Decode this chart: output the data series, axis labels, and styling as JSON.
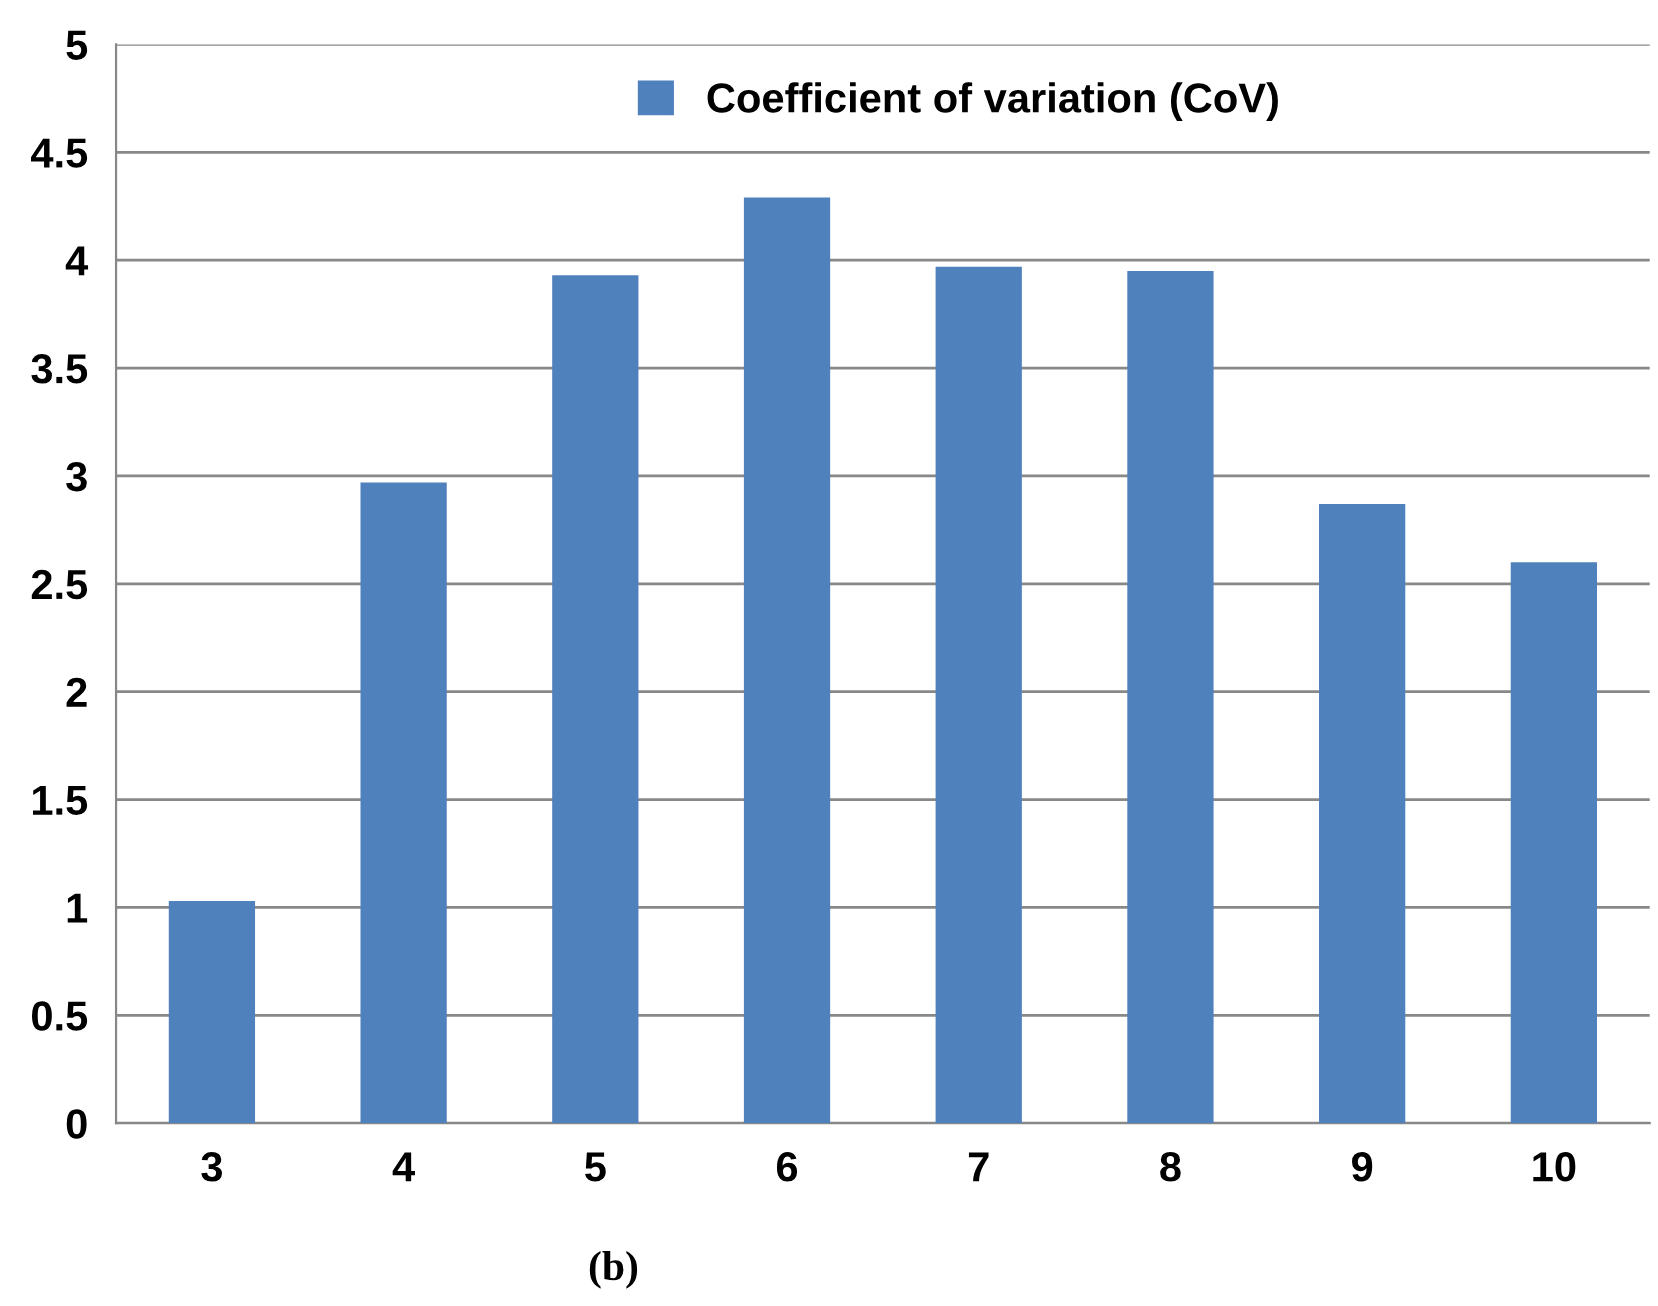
{
  "chart_data": {
    "type": "bar",
    "categories": [
      "3",
      "4",
      "5",
      "6",
      "7",
      "8",
      "9",
      "10"
    ],
    "series": [
      {
        "name": "Coefficient of variation (CoV)",
        "color": "#4f81bd",
        "values": [
          1.03,
          2.97,
          3.93,
          4.29,
          3.97,
          3.95,
          2.87,
          2.6
        ]
      }
    ],
    "ylim": [
      0,
      5
    ],
    "yticks": [
      0,
      0.5,
      1,
      1.5,
      2,
      2.5,
      3,
      3.5,
      4,
      4.5,
      5
    ],
    "grid": "y",
    "legend": "top",
    "annotations": [
      "(b)"
    ]
  }
}
